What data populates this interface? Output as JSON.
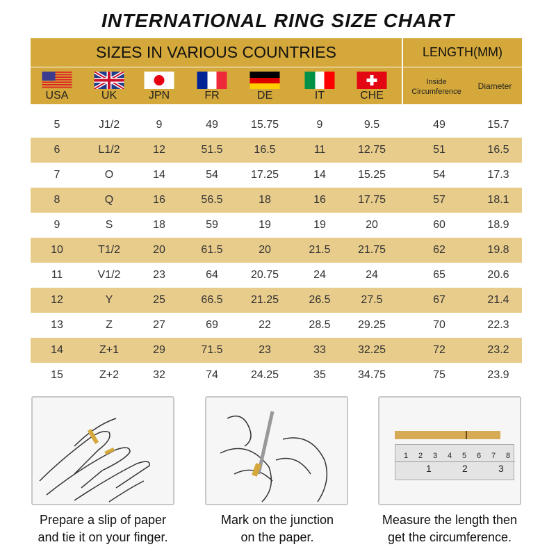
{
  "title": "INTERNATIONAL RING SIZE CHART",
  "header": {
    "countries_title": "SIZES IN VARIOUS COUNTRIES",
    "length_title": "LENGTH(MM)",
    "inside_circumference": [
      "Inside",
      "Circumference"
    ],
    "diameter": "Diameter"
  },
  "countries": [
    {
      "code": "USA",
      "flag": "usa-flag"
    },
    {
      "code": "UK",
      "flag": "uk-flag"
    },
    {
      "code": "JPN",
      "flag": "japan-flag"
    },
    {
      "code": "FR",
      "flag": "france-flag"
    },
    {
      "code": "DE",
      "flag": "germany-flag"
    },
    {
      "code": "IT",
      "flag": "italy-flag"
    },
    {
      "code": "CHE",
      "flag": "switzerland-flag"
    }
  ],
  "rows": [
    [
      "5",
      "J1/2",
      "9",
      "49",
      "15.75",
      "9",
      "9.5",
      "49",
      "15.7"
    ],
    [
      "6",
      "L1/2",
      "12",
      "51.5",
      "16.5",
      "11",
      "12.75",
      "51",
      "16.5"
    ],
    [
      "7",
      "O",
      "14",
      "54",
      "17.25",
      "14",
      "15.25",
      "54",
      "17.3"
    ],
    [
      "8",
      "Q",
      "16",
      "56.5",
      "18",
      "16",
      "17.75",
      "57",
      "18.1"
    ],
    [
      "9",
      "S",
      "18",
      "59",
      "19",
      "19",
      "20",
      "60",
      "18.9"
    ],
    [
      "10",
      "T1/2",
      "20",
      "61.5",
      "20",
      "21.5",
      "21.75",
      "62",
      "19.8"
    ],
    [
      "11",
      "V1/2",
      "23",
      "64",
      "20.75",
      "24",
      "24",
      "65",
      "20.6"
    ],
    [
      "12",
      "Y",
      "25",
      "66.5",
      "21.25",
      "26.5",
      "27.5",
      "67",
      "21.4"
    ],
    [
      "13",
      "Z",
      "27",
      "69",
      "22",
      "28.5",
      "29.25",
      "70",
      "22.3"
    ],
    [
      "14",
      "Z+1",
      "29",
      "71.5",
      "23",
      "33",
      "32.25",
      "72",
      "23.2"
    ],
    [
      "15",
      "Z+2",
      "32",
      "74",
      "24.25",
      "35",
      "34.75",
      "75",
      "23.9"
    ]
  ],
  "steps": [
    {
      "line1": "Prepare a slip of paper",
      "line2": "and tie it on your finger."
    },
    {
      "line1": "Mark on the junction",
      "line2": "on the paper."
    },
    {
      "line1": "Measure the length then",
      "line2": "get the circumference."
    }
  ],
  "ruler": {
    "top_numbers": [
      "1",
      "2",
      "3",
      "4",
      "5",
      "6",
      "7",
      "8"
    ],
    "bottom_numbers": [
      "1",
      "2",
      "3"
    ]
  },
  "colors": {
    "header": "#d4a83a",
    "stripe": "#e8cc8c"
  }
}
